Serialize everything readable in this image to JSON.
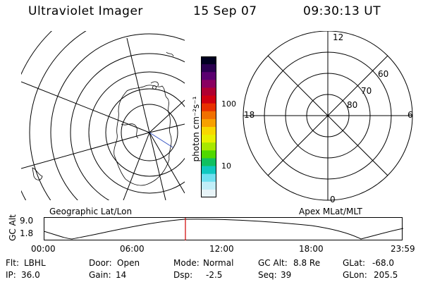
{
  "header": {
    "instrument": "Ultraviolet Imager",
    "date": "15 Sep 07",
    "time": "09:30:13 UT"
  },
  "colorbar": {
    "unit_label": "photon cm⁻²s⁻¹",
    "ticks": [
      "100",
      "10"
    ],
    "colors": [
      "#000020",
      "#2a0050",
      "#5a0070",
      "#8a0060",
      "#b00030",
      "#d00010",
      "#e83000",
      "#f07000",
      "#f8a000",
      "#f8d800",
      "#e8f000",
      "#a8e800",
      "#50d800",
      "#10c060",
      "#10c8c0",
      "#70e0f0",
      "#c0eef8",
      "#e8f4f8"
    ]
  },
  "left_panel": {
    "caption": "Geographic Lat/Lon"
  },
  "right_panel": {
    "caption": "Apex MLat/MLT",
    "mlt_labels": {
      "top": "12",
      "left": "18",
      "right": "6",
      "bottom": "0"
    },
    "lat_labels": [
      "60",
      "70",
      "80"
    ]
  },
  "timeline": {
    "axis_label": "GC Alt",
    "y_ticks": [
      "9.0",
      "1.8"
    ],
    "x_ticks": [
      "00:00",
      "06:00",
      "12:00",
      "18:00",
      "23:59"
    ],
    "marker_color": "#d00000"
  },
  "footer": {
    "row1": [
      {
        "key": "Flt:",
        "value": "LBHL"
      },
      {
        "key": "Door:",
        "value": "Open"
      },
      {
        "key": "Mode:",
        "value": "Normal"
      },
      {
        "key": "GC Alt:",
        "value": "8.8 Re"
      },
      {
        "key": "GLat:",
        "value": "-68.0"
      }
    ],
    "row2": [
      {
        "key": "IP:",
        "value": "36.0"
      },
      {
        "key": "Gain:",
        "value": "14"
      },
      {
        "key": "Dsp:",
        "value": "-2.5"
      },
      {
        "key": "Seq:",
        "value": "39"
      },
      {
        "key": "GLon:",
        "value": "205.5"
      }
    ]
  }
}
